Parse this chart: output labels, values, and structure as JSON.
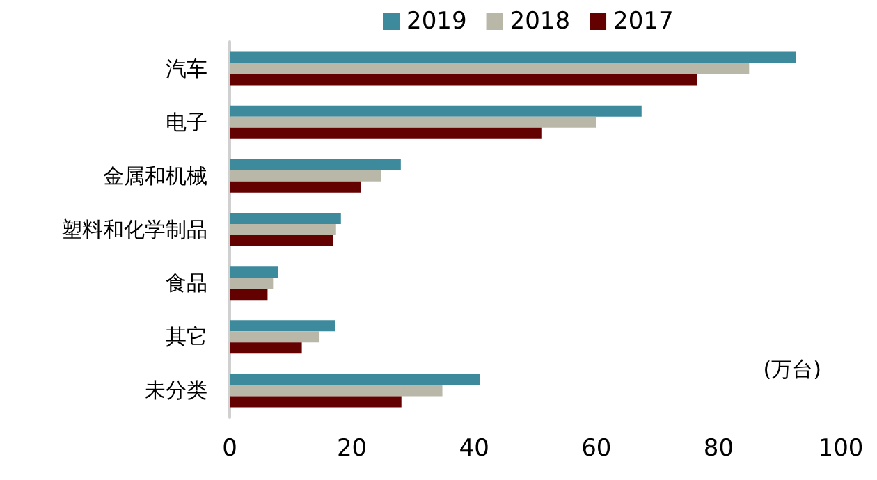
{
  "chart_data": {
    "type": "bar",
    "orientation": "horizontal",
    "categories": [
      "汽车",
      "电子",
      "金属和机械",
      "塑料和化学制品",
      "食品",
      "其它",
      "未分类"
    ],
    "series": [
      {
        "name": "2019",
        "color": "#3d8a9c",
        "values": [
          92.7,
          67.4,
          28.0,
          18.2,
          7.9,
          17.3,
          41.0
        ]
      },
      {
        "name": "2018",
        "color": "#b9b8a8",
        "values": [
          85.0,
          60.0,
          24.8,
          17.4,
          7.1,
          14.7,
          34.8
        ]
      },
      {
        "name": "2017",
        "color": "#630000",
        "values": [
          76.5,
          51.0,
          21.5,
          16.9,
          6.2,
          11.8,
          28.1
        ]
      }
    ],
    "xlim": [
      0,
      100
    ],
    "xticks": [
      0,
      20,
      40,
      60,
      80,
      100
    ],
    "annotations": [
      "(万台)"
    ],
    "legend": "top",
    "grid": false
  }
}
